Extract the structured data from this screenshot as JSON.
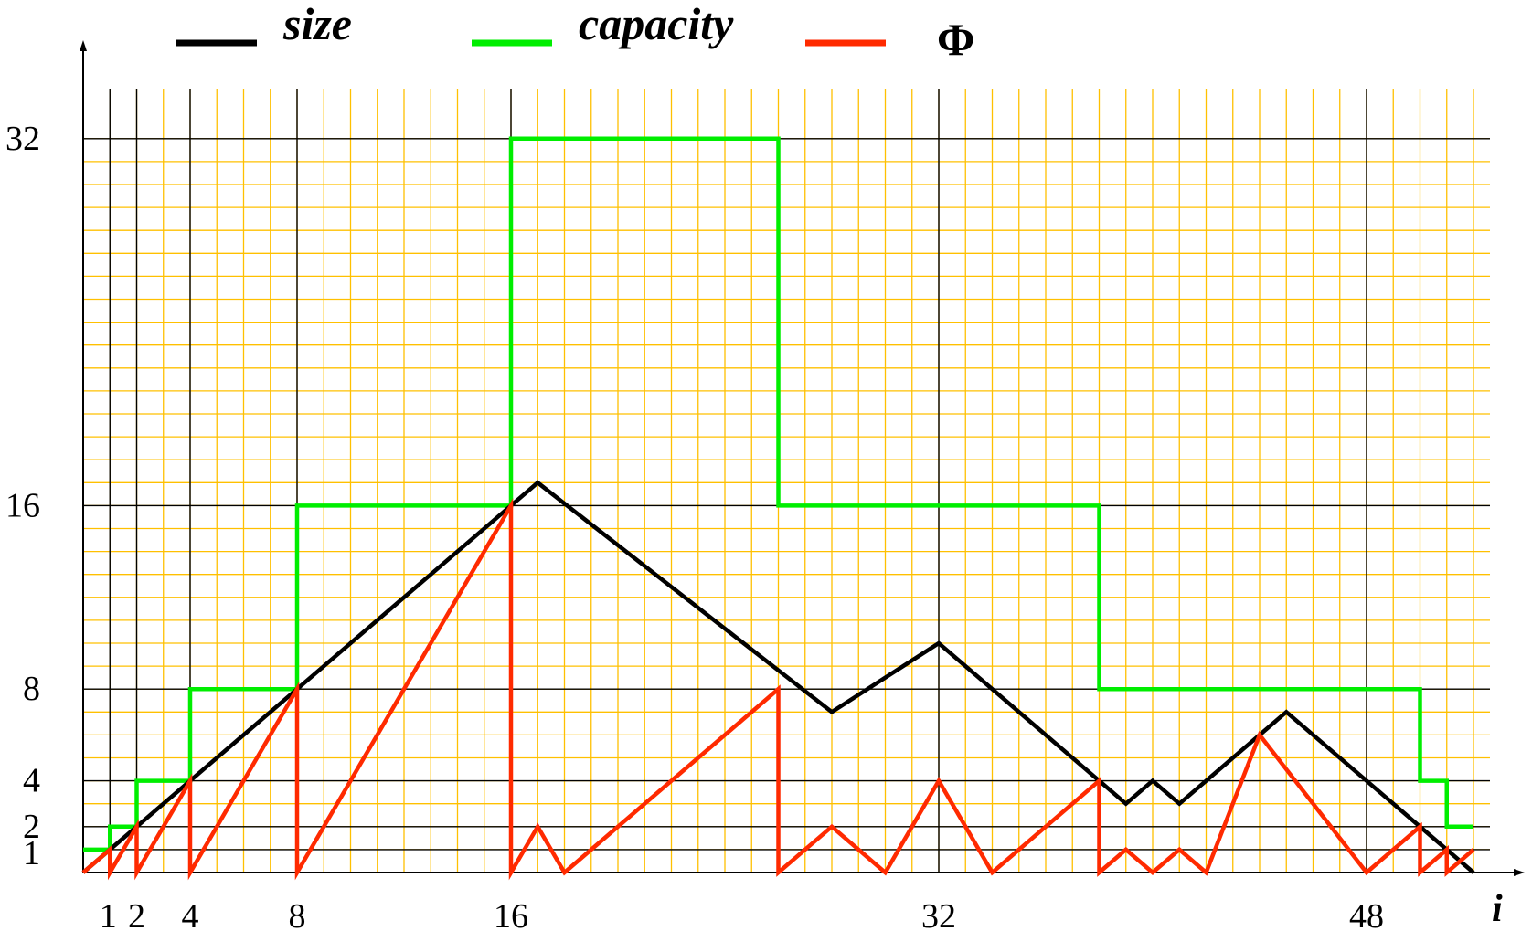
{
  "chart_data": {
    "type": "line",
    "title": "",
    "xlabel": "i",
    "ylabel": "",
    "xlim": [
      0,
      52.5
    ],
    "ylim": [
      0,
      32.5
    ],
    "grid": {
      "minor_step": 1,
      "minor_color": "#ffc000",
      "major_color": "#000000",
      "major_x": [
        1,
        2,
        4,
        8,
        16,
        32,
        48
      ],
      "major_y": [
        1,
        2,
        4,
        8,
        16,
        32
      ]
    },
    "x_ticks": [
      {
        "value": 1,
        "label": "1"
      },
      {
        "value": 2,
        "label": "2"
      },
      {
        "value": 4,
        "label": "4"
      },
      {
        "value": 8,
        "label": "8"
      },
      {
        "value": 16,
        "label": "16"
      },
      {
        "value": 32,
        "label": "32"
      },
      {
        "value": 48,
        "label": "48"
      }
    ],
    "y_ticks": [
      {
        "value": 1,
        "label": "1"
      },
      {
        "value": 2,
        "label": "2"
      },
      {
        "value": 4,
        "label": "4"
      },
      {
        "value": 8,
        "label": "8"
      },
      {
        "value": 16,
        "label": "16"
      },
      {
        "value": 32,
        "label": "32"
      }
    ],
    "legend": {
      "position": "top",
      "entries": [
        {
          "name": "size",
          "color": "#000000"
        },
        {
          "name": "capacity",
          "color": "#00ee00"
        },
        {
          "name": "Φ",
          "color": "#ff2a00"
        }
      ]
    },
    "series": [
      {
        "name": "size",
        "color": "#000000",
        "step": false,
        "points": [
          [
            0,
            0
          ],
          [
            17,
            17
          ],
          [
            28,
            7
          ],
          [
            32,
            10
          ],
          [
            38,
            4
          ],
          [
            39,
            3
          ],
          [
            40,
            4
          ],
          [
            41,
            3
          ],
          [
            45,
            7
          ],
          [
            52,
            0
          ]
        ]
      },
      {
        "name": "capacity",
        "color": "#00ee00",
        "step": true,
        "points": [
          [
            0,
            1
          ],
          [
            1,
            1
          ],
          [
            1,
            2
          ],
          [
            2,
            2
          ],
          [
            2,
            4
          ],
          [
            4,
            4
          ],
          [
            4,
            8
          ],
          [
            8,
            8
          ],
          [
            8,
            16
          ],
          [
            16,
            16
          ],
          [
            16,
            32
          ],
          [
            26,
            32
          ],
          [
            26,
            16
          ],
          [
            38,
            16
          ],
          [
            38,
            8
          ],
          [
            50,
            8
          ],
          [
            50,
            4
          ],
          [
            51,
            4
          ],
          [
            51,
            2
          ],
          [
            52,
            2
          ]
        ]
      },
      {
        "name": "Φ",
        "color": "#ff2a00",
        "step": false,
        "points": [
          [
            0,
            0
          ],
          [
            1,
            1
          ],
          [
            1,
            0
          ],
          [
            2,
            2
          ],
          [
            2,
            0
          ],
          [
            4,
            4
          ],
          [
            4,
            0
          ],
          [
            8,
            8
          ],
          [
            8,
            0
          ],
          [
            16,
            16
          ],
          [
            16,
            0
          ],
          [
            17,
            2
          ],
          [
            18,
            0
          ],
          [
            26,
            8
          ],
          [
            26,
            0
          ],
          [
            28,
            2
          ],
          [
            30,
            0
          ],
          [
            32,
            4
          ],
          [
            34,
            0
          ],
          [
            38,
            4
          ],
          [
            38,
            0
          ],
          [
            39,
            1
          ],
          [
            40,
            0
          ],
          [
            41,
            1
          ],
          [
            42,
            0
          ],
          [
            44,
            6
          ],
          [
            48,
            0
          ],
          [
            50,
            2
          ],
          [
            50,
            0
          ],
          [
            51,
            1
          ],
          [
            51,
            0
          ],
          [
            52,
            1
          ]
        ]
      }
    ]
  }
}
